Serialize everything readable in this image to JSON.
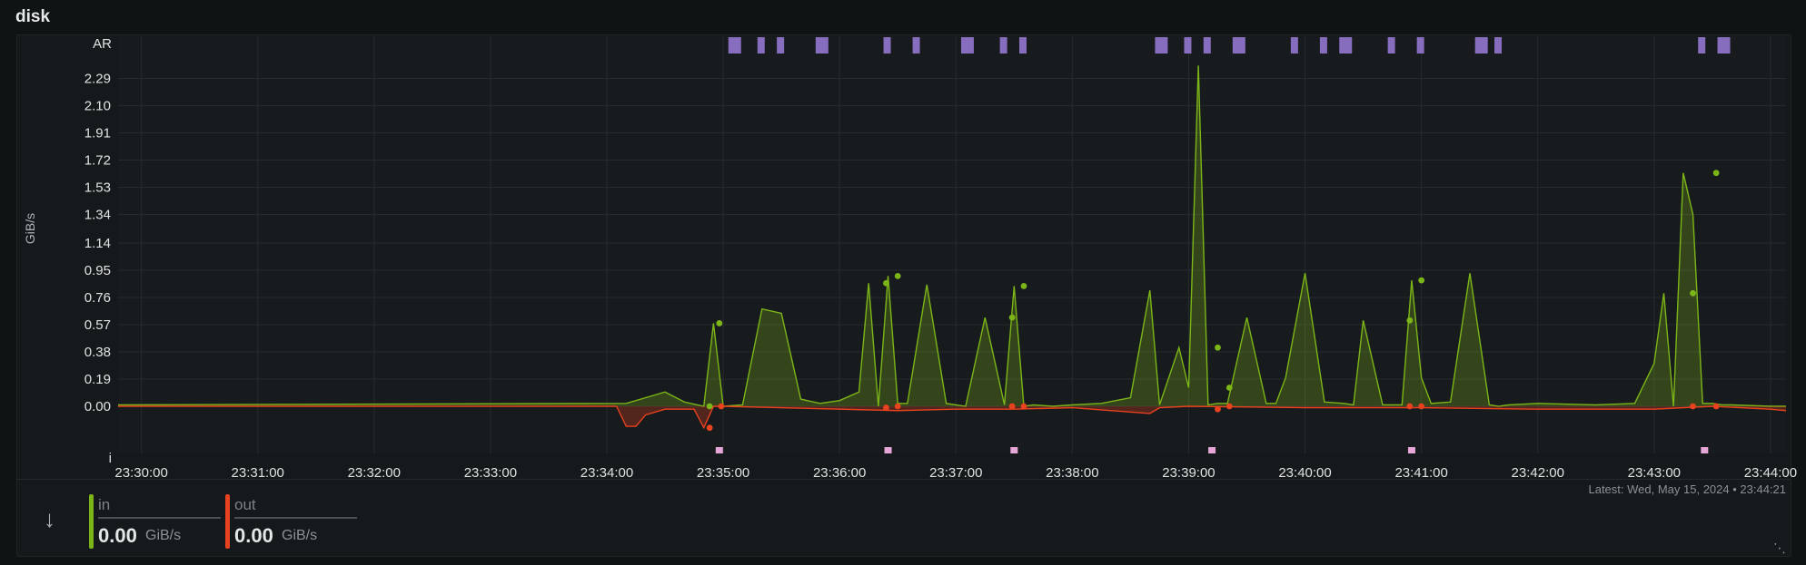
{
  "panel": {
    "title": "disk"
  },
  "chart_data": {
    "type": "area",
    "ylabel": "GiB/s",
    "ylim": [
      -0.19,
      2.42
    ],
    "y_ticks": [
      "0.00",
      "0.19",
      "0.38",
      "0.57",
      "0.76",
      "0.95",
      "1.14",
      "1.34",
      "1.53",
      "1.72",
      "1.91",
      "2.10",
      "2.29"
    ],
    "x_ticks": [
      "23:30:00",
      "23:31:00",
      "23:32:00",
      "23:33:00",
      "23:34:00",
      "23:35:00",
      "23:36:00",
      "23:37:00",
      "23:38:00",
      "23:39:00",
      "23:40:00",
      "23:41:00",
      "23:42:00",
      "23:43:00",
      "23:44:00"
    ],
    "top_row_label": "AR",
    "bottom_row_label": "i",
    "grid": true,
    "series": [
      {
        "name": "in",
        "color": "#7cb518",
        "x": [
          "23:29:48",
          "23:34:10",
          "23:34:25",
          "23:34:30",
          "23:34:40",
          "23:34:50",
          "23:34:55",
          "23:35:00",
          "23:35:10",
          "23:35:20",
          "23:35:30",
          "23:35:40",
          "23:35:50",
          "23:36:00",
          "23:36:10",
          "23:36:15",
          "23:36:20",
          "23:36:25",
          "23:36:30",
          "23:36:35",
          "23:36:45",
          "23:36:55",
          "23:37:00",
          "23:37:05",
          "23:37:15",
          "23:37:25",
          "23:37:30",
          "23:37:35",
          "23:37:40",
          "23:37:50",
          "23:38:00",
          "23:38:15",
          "23:38:30",
          "23:38:40",
          "23:38:45",
          "23:38:55",
          "23:39:00",
          "23:39:05",
          "23:39:10",
          "23:39:15",
          "23:39:20",
          "23:39:30",
          "23:39:40",
          "23:39:45",
          "23:39:50",
          "23:40:00",
          "23:40:10",
          "23:40:20",
          "23:40:25",
          "23:40:30",
          "23:40:40",
          "23:40:50",
          "23:40:55",
          "23:41:00",
          "23:41:05",
          "23:41:15",
          "23:41:25",
          "23:41:35",
          "23:41:40",
          "23:41:45",
          "23:42:00",
          "23:42:30",
          "23:42:50",
          "23:43:00",
          "23:43:05",
          "23:43:10",
          "23:43:15",
          "23:43:20",
          "23:43:25",
          "23:43:30",
          "23:43:35",
          "23:43:40",
          "23:44:00",
          "23:44:08"
        ],
        "values": [
          0.01,
          0.02,
          0.08,
          0.1,
          0.03,
          0.0,
          0.58,
          0.0,
          0.01,
          0.68,
          0.65,
          0.05,
          0.02,
          0.04,
          0.1,
          0.86,
          0.0,
          0.91,
          0.02,
          0.02,
          0.85,
          0.02,
          0.01,
          0.0,
          0.62,
          0.01,
          0.84,
          0.0,
          0.01,
          0.0,
          0.01,
          0.02,
          0.06,
          0.81,
          0.01,
          0.41,
          0.13,
          2.38,
          0.01,
          0.02,
          0.02,
          0.62,
          0.02,
          0.02,
          0.2,
          0.93,
          0.03,
          0.02,
          0.01,
          0.6,
          0.01,
          0.01,
          0.88,
          0.2,
          0.02,
          0.03,
          0.93,
          0.01,
          0.0,
          0.01,
          0.02,
          0.01,
          0.02,
          0.3,
          0.79,
          0.0,
          1.63,
          1.34,
          0.02,
          0.02,
          0.01,
          0.01,
          0.0,
          0.0
        ]
      },
      {
        "name": "out",
        "color": "#e8421f",
        "x": [
          "23:29:48",
          "23:34:05",
          "23:34:10",
          "23:34:15",
          "23:34:20",
          "23:34:30",
          "23:34:45",
          "23:34:50",
          "23:34:55",
          "23:35:00",
          "23:36:30",
          "23:37:00",
          "23:37:30",
          "23:38:00",
          "23:38:40",
          "23:38:45",
          "23:39:00",
          "23:40:00",
          "23:41:00",
          "23:42:00",
          "23:43:00",
          "23:43:30",
          "23:44:00",
          "23:44:08"
        ],
        "values": [
          0.0,
          0.0,
          -0.14,
          -0.14,
          -0.06,
          -0.02,
          -0.02,
          -0.15,
          0.0,
          0.0,
          -0.03,
          -0.02,
          -0.02,
          -0.01,
          -0.05,
          -0.01,
          0.0,
          -0.01,
          -0.01,
          -0.02,
          -0.02,
          0.0,
          -0.02,
          -0.03
        ]
      }
    ],
    "in_markers": [
      {
        "x": "23:34:53",
        "y": 0.0
      },
      {
        "x": "23:34:58",
        "y": 0.58
      },
      {
        "x": "23:36:24",
        "y": 0.86
      },
      {
        "x": "23:36:30",
        "y": 0.91
      },
      {
        "x": "23:37:29",
        "y": 0.62
      },
      {
        "x": "23:37:35",
        "y": 0.84
      },
      {
        "x": "23:39:15",
        "y": 0.41
      },
      {
        "x": "23:39:21",
        "y": 0.13
      },
      {
        "x": "23:40:54",
        "y": 0.6
      },
      {
        "x": "23:41:00",
        "y": 0.88
      },
      {
        "x": "23:43:20",
        "y": 0.79
      },
      {
        "x": "23:43:32",
        "y": 1.63
      }
    ],
    "out_markers": [
      {
        "x": "23:34:53",
        "y": -0.15
      },
      {
        "x": "23:34:59",
        "y": 0.0
      },
      {
        "x": "23:36:24",
        "y": -0.01
      },
      {
        "x": "23:36:30",
        "y": 0.0
      },
      {
        "x": "23:37:29",
        "y": 0.0
      },
      {
        "x": "23:37:35",
        "y": 0.0
      },
      {
        "x": "23:39:15",
        "y": -0.02
      },
      {
        "x": "23:39:21",
        "y": 0.0
      },
      {
        "x": "23:40:54",
        "y": 0.0
      },
      {
        "x": "23:41:00",
        "y": 0.0
      },
      {
        "x": "23:43:20",
        "y": 0.0
      },
      {
        "x": "23:43:32",
        "y": 0.0
      }
    ],
    "top_annotations": [
      "23:35:05",
      "23:35:20",
      "23:35:30",
      "23:35:50",
      "23:36:25",
      "23:36:40",
      "23:37:05",
      "23:37:25",
      "23:37:35",
      "23:38:45",
      "23:39:00",
      "23:39:10",
      "23:39:25",
      "23:39:55",
      "23:40:10",
      "23:40:20",
      "23:40:45",
      "23:41:00",
      "23:41:30",
      "23:41:40",
      "23:43:25",
      "23:43:35"
    ],
    "bottom_annotations": [
      "23:34:58",
      "23:36:25",
      "23:37:30",
      "23:39:12",
      "23:40:55",
      "23:43:26"
    ]
  },
  "legend": {
    "series": [
      {
        "name": "in",
        "value": "0.00",
        "unit": "GiB/s",
        "color": "#7cb518"
      },
      {
        "name": "out",
        "value": "0.00",
        "unit": "GiB/s",
        "color": "#e8421f"
      }
    ],
    "latest": "Latest:  Wed, May 15, 2024 • 23:44:21"
  },
  "icons": {
    "legend_toggle": "arrow-down-icon",
    "resize": "resize-handle-icon"
  }
}
